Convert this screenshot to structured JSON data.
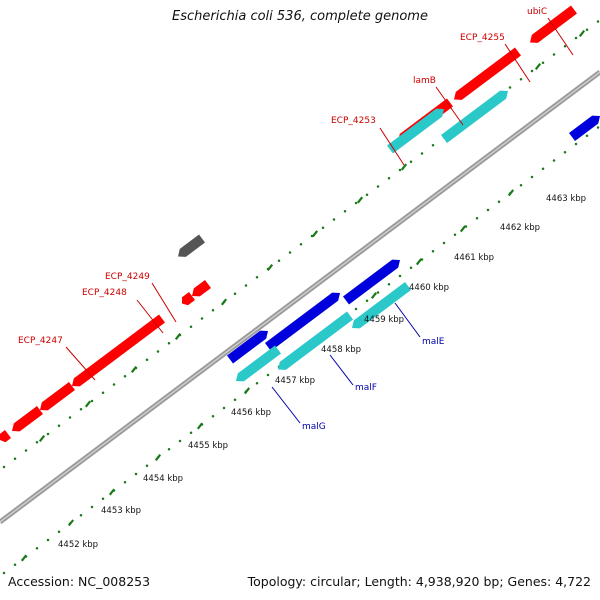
{
  "title": "Escherichia coli 536, complete genome",
  "footer": {
    "accession": "Accession: NC_008253",
    "summary": "Topology: circular; Length: 4,938,920 bp; Genes: 4,722"
  },
  "colors": {
    "backbone": "#9a9a9a",
    "tick": "#1a7a1a",
    "forward_gene": "#0000dd",
    "reverse_gene": "#ff0000",
    "rna_gene": "#2ac8c8",
    "other_gene": "#555555",
    "upper_label": "#cc0000",
    "lower_label": "#0000aa",
    "scale_label": "#111111"
  },
  "scale_labels": [
    "4452 kbp",
    "4453 kbp",
    "4454 kbp",
    "4455 kbp",
    "4456 kbp",
    "4457 kbp",
    "4458 kbp",
    "4459 kbp",
    "4460 kbp",
    "4461 kbp",
    "4462 kbp",
    "4463 kbp"
  ],
  "upper_gene_labels": [
    "ubiC",
    "ECP_4255",
    "lamB",
    "ECP_4253",
    "ECP_4249",
    "ECP_4248",
    "ECP_4247"
  ],
  "lower_gene_labels": [
    "malE",
    "malF",
    "malG"
  ]
}
